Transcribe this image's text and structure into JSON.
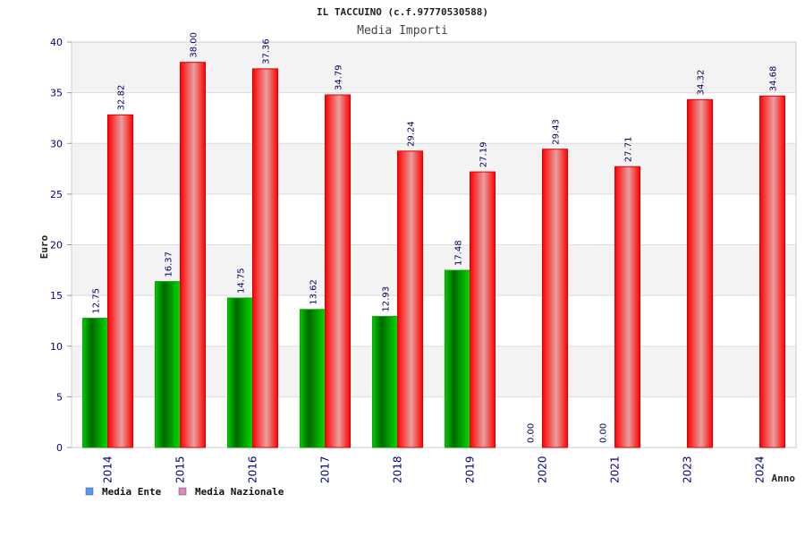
{
  "chart_data": {
    "type": "bar",
    "title": "IL TACCUINO (c.f.97770530588)",
    "subtitle": "Media Importi",
    "xlabel": "Anno",
    "ylabel": "Euro",
    "ylim": [
      0,
      40
    ],
    "yticks": [
      0,
      5,
      10,
      15,
      20,
      25,
      30,
      35,
      40
    ],
    "categories": [
      "2014",
      "2015",
      "2016",
      "2017",
      "2018",
      "2019",
      "2020",
      "2021",
      "2023",
      "2024"
    ],
    "series": [
      {
        "name": "Media Ente",
        "color": "#00b000",
        "values": [
          12.75,
          16.37,
          14.75,
          13.62,
          12.93,
          17.48,
          0.0,
          0.0,
          null,
          null
        ],
        "labels": [
          "12.75",
          "16.37",
          "14.75",
          "13.62",
          "12.93",
          "17.48",
          "0.00",
          "0.00",
          null,
          null
        ]
      },
      {
        "name": "Media Nazionale",
        "color": "#ee1111",
        "values": [
          32.82,
          38.0,
          37.36,
          34.79,
          29.24,
          27.19,
          29.43,
          27.71,
          34.32,
          34.68
        ],
        "labels": [
          "32.82",
          "38.00",
          "37.36",
          "34.79",
          "29.24",
          "27.19",
          "29.43",
          "27.71",
          "34.32",
          "34.68"
        ]
      }
    ],
    "legend": [
      {
        "label": "Media Ente",
        "color": "#5599ee"
      },
      {
        "label": "Media Nazionale",
        "color": "#dd88bb"
      }
    ],
    "grid": true,
    "legend_position": "bottom-left"
  }
}
